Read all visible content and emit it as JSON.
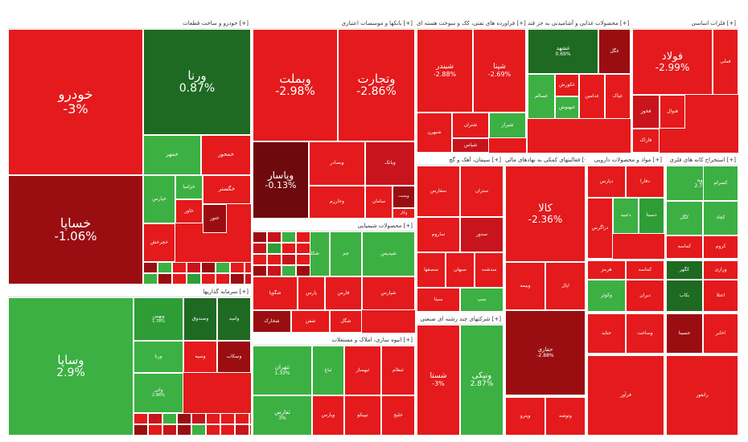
{
  "colors": {
    "red": "#e41a1c",
    "red_mid": "#c8141c",
    "red_dark": "#9a0e12",
    "maroon": "#6e0a0e",
    "green": "#3cb043",
    "green_mid": "#2e9d36",
    "green_dark": "#1e6a22"
  },
  "sectors": [
    {
      "id": "auto",
      "label": "خودرو و ساخت قطعات [+]"
    },
    {
      "id": "banks",
      "label": "بانکها و موسسات اعتباری [+]"
    },
    {
      "id": "metals",
      "label": "فلزات اساسی [+]"
    },
    {
      "id": "investment",
      "label": "سرمایه گذاریها [+]"
    },
    {
      "id": "refinery",
      "label": "فراورده های نفتی، کک و سوخت هسته ای [+]"
    },
    {
      "id": "food",
      "label": "محصولات غذایی و آشامیدنی به جز قند [+]"
    },
    {
      "id": "chemical",
      "label": "محصولات شیمیایی [+]"
    },
    {
      "id": "cement",
      "label": "سیمان، آهک و گچ [+]"
    },
    {
      "id": "multi",
      "label": "شرکتهای چند رشته ای صنعتی [+]"
    },
    {
      "id": "construction",
      "label": "انبوه سازی، املاک و مستغلات [+]"
    },
    {
      "id": "support",
      "label": "فعالیتهای کمکی به نهادهای مالی [+]"
    },
    {
      "id": "pharma",
      "label": "مواد و محصولات دارویی [+]"
    },
    {
      "id": "mining",
      "label": "استخراج کانه های فلزی [+]"
    }
  ],
  "tiles": {
    "khodro": {
      "sym": "خودرو",
      "chg": "-3%"
    },
    "varna": {
      "sym": "ورنا",
      "chg": "0.87%"
    },
    "khsapa": {
      "sym": "خساپا",
      "chg": "-1.06%"
    },
    "vebmellat": {
      "sym": "وبملت",
      "chg": "-2.98%"
    },
    "vtejarat": {
      "sym": "وتجارت",
      "chg": "-2.86%"
    },
    "vpasar": {
      "sym": "وپاسار",
      "chg": "-0.13%"
    },
    "foolad": {
      "sym": "فولاد",
      "chg": "-2.99%"
    },
    "vsapa": {
      "sym": "وساپا",
      "chg": "2.9%"
    },
    "shebandar": {
      "sym": "شبندر",
      "chg": "-2.88%"
    },
    "shepna": {
      "sym": "شپنا",
      "chg": "-2.69%"
    },
    "kala": {
      "sym": "کالا",
      "chg": "-2.36%"
    },
    "vnik": {
      "sym": "ونیکی",
      "chg": "2.87%"
    },
    "shasta": {
      "sym": "شستا",
      "chg": "-3%"
    },
    "khgostar": {
      "sym": "خگستر",
      "chg": ""
    },
    "khmehr": {
      "sym": "خمهر",
      "chg": ""
    },
    "khemehvar": {
      "sym": "خمحور",
      "chg": ""
    },
    "kheper": {
      "sym": "خپارس",
      "chg": ""
    },
    "khzamia": {
      "sym": "خزامیا",
      "chg": ""
    },
    "khavar": {
      "sym": "خاور",
      "chg": ""
    },
    "khchin": {
      "sym": "خچرخش",
      "chg": ""
    },
    "khlent": {
      "sym": "ختور",
      "chg": ""
    },
    "vbsadr": {
      "sym": "وبصادر",
      "chg": ""
    },
    "vbank": {
      "sym": "وبانک",
      "chg": ""
    },
    "vkhar": {
      "sym": "وخارزم",
      "chg": ""
    },
    "vsamen": {
      "sym": "سامان",
      "chg": ""
    },
    "vpost": {
      "sym": "وپست",
      "chg": ""
    },
    "vkar": {
      "sym": "وکار",
      "chg": ""
    },
    "nikhl": {
      "sym": "فملی",
      "chg": ""
    },
    "fkhooz": {
      "sym": "فخوز",
      "chg": ""
    },
    "fmobarak": {
      "sym": "فاراک",
      "chg": ""
    },
    "foolad2": {
      "sym": "فنوال",
      "chg": ""
    },
    "ghadir": {
      "sym": "وغدیر",
      "chg": ""
    },
    "vsan": {
      "sym": "وصنعت",
      "chg": ""
    },
    "vtoos": {
      "sym": "وتوسم",
      "chg": ""
    },
    "vgostar": {
      "sym": "وبوعلی",
      "chg": ""
    },
    "vmehr": {
      "sym": "ومعادن",
      "chg": ""
    },
    "kehrmag": {
      "sym": "ومهان",
      "chg": ""
    },
    "shbehran": {
      "sym": "شبهرن",
      "chg": ""
    },
    "shteran": {
      "sym": "شتران",
      "chg": ""
    },
    "shiraz": {
      "sym": "شیراز",
      "chg": ""
    },
    "shpasa": {
      "sym": "شپاس",
      "chg": ""
    },
    "khoshbir": {
      "sym": "غشهد",
      "chg": "0.69%"
    },
    "ghgol": {
      "sym": "غگل",
      "chg": ""
    },
    "ghsalem": {
      "sym": "غسالم",
      "chg": ""
    },
    "ghkurosh": {
      "sym": "غکورش",
      "chg": ""
    },
    "ghbehs": {
      "sym": "غبهنوش",
      "chg": ""
    },
    "ghdamin": {
      "sym": "غدامین",
      "chg": ""
    },
    "ghgelpa": {
      "sym": "غپاک",
      "chg": ""
    },
    "shekhark": {
      "sym": "شخارک",
      "chg": ""
    },
    "shefan": {
      "sym": "شفن",
      "chg": ""
    },
    "shgol": {
      "sym": "شگل",
      "chg": ""
    },
    "shpars": {
      "sym": "شپارس",
      "chg": ""
    },
    "shkala": {
      "sym": "شکلر",
      "chg": ""
    },
    "shkhazar": {
      "sym": "شکربن",
      "chg": ""
    },
    "jam": {
      "sym": "جم",
      "chg": ""
    },
    "shpdis": {
      "sym": "شپدیس",
      "chg": ""
    },
    "fars": {
      "sym": "فارس",
      "chg": ""
    },
    "pars": {
      "sym": "پارس",
      "chg": ""
    },
    "shgoya": {
      "sym": "شگویا",
      "chg": ""
    },
    "sfars": {
      "sym": "سفارس",
      "chg": ""
    },
    "stran": {
      "sym": "ستران",
      "chg": ""
    },
    "sarub": {
      "sym": "ساروم",
      "chg": ""
    },
    "sdoror": {
      "sym": "سدور",
      "chg": ""
    },
    "sekhazar": {
      "sym": "سخزر",
      "chg": ""
    },
    "sshomal": {
      "sym": "سشمال",
      "chg": ""
    },
    "sfanoos": {
      "sym": "سصفها",
      "chg": ""
    },
    "sbahan": {
      "sym": "سبهان",
      "chg": ""
    },
    "sdasht": {
      "sym": "سدشت",
      "chg": ""
    },
    "ssisi": {
      "sym": "سیتا",
      "chg": ""
    },
    "ssep": {
      "sym": "سپ",
      "chg": ""
    },
    "mehr": {
      "sym": "ثشرق",
      "chg": ""
    },
    "vsakht": {
      "sym": "ثاخت",
      "chg": ""
    },
    "tamlak": {
      "sym": "ثامان",
      "chg": ""
    },
    "tnoor": {
      "sym": "ثنوسا",
      "chg": ""
    },
    "taval": {
      "sym": "ثعمرا",
      "chg": ""
    },
    "thgostar": {
      "sym": "ثپردیس",
      "chg": ""
    },
    "theser": {
      "sym": "ثغرب",
      "chg": ""
    },
    "vrazi": {
      "sym": "وپترو",
      "chg": ""
    },
    "vtaminr": {
      "sym": "وتوشه",
      "chg": ""
    },
    "vsina": {
      "sym": "وسینا",
      "chg": ""
    },
    "vgadir2": {
      "sym": "ونوین",
      "chg": ""
    },
    "dpars": {
      "sym": "دپارس",
      "chg": ""
    },
    "dfara": {
      "sym": "دفارا",
      "chg": ""
    },
    "dzahravi": {
      "sym": "دزاگرس",
      "chg": ""
    },
    "dabidi": {
      "sym": "دعبید",
      "chg": ""
    },
    "dsina": {
      "sym": "دسینا",
      "chg": ""
    },
    "kgol": {
      "sym": "کگل",
      "chg": ""
    },
    "kchad": {
      "sym": "کچاد",
      "chg": ""
    },
    "kemas": {
      "sym": "کماسه",
      "chg": ""
    },
    "kroom": {
      "sym": "کروم",
      "chg": ""
    },
    "kvyan": {
      "sym": "کاوه",
      "chg": "2.77%"
    },
    "ksarab": {
      "sym": "کسرام",
      "chg": ""
    },
    "vtis": {
      "sym": "وبیمه",
      "chg": ""
    },
    "aps": {
      "sym": "اپال",
      "chg": ""
    },
    "hafari": {
      "sym": "حفاری",
      "chg": "-2.88%"
    },
    "khemah": {
      "sym": "ختوقا",
      "chg": ""
    },
    "vkhark": {
      "sym": "تکنو",
      "chg": ""
    },
    "ptay": {
      "sym": "پکرمان",
      "chg": ""
    },
    "rtel": {
      "sym": "رتاپ",
      "chg": ""
    },
    "zfaja": {
      "sym": "زفجر",
      "chg": ""
    },
    "inv1": {
      "sym": "وبهمن",
      "chg": "1.78%"
    },
    "inv2": {
      "sym": "وصندوق",
      "chg": ""
    },
    "inv3": {
      "sym": "وامید",
      "chg": ""
    },
    "inv4": {
      "sym": "ورنا",
      "chg": ""
    },
    "inv5": {
      "sym": "وسپه",
      "chg": ""
    },
    "inv6": {
      "sym": "وسکاب",
      "chg": ""
    },
    "inv7": {
      "sym": "واتی",
      "chg": "2.86%"
    },
    "cs1": {
      "sym": "ثتهران",
      "chg": "1.33%"
    },
    "cs2": {
      "sym": "ثفارس",
      "chg": "3%"
    },
    "cs3": {
      "sym": "ثباغ",
      "chg": ""
    },
    "cs4": {
      "sym": "ثبهساز",
      "chg": ""
    },
    "cs5": {
      "sym": "ثنظام",
      "chg": ""
    },
    "mu1": {
      "sym": "وپارس",
      "chg": ""
    },
    "mu2": {
      "sym": "تیپیکو",
      "chg": ""
    },
    "mu3": {
      "sym": "خلیج",
      "chg": ""
    },
    "mu4": {
      "sym": "وتوکا",
      "chg": ""
    },
    "fe1": {
      "sym": "هرمز",
      "chg": ""
    },
    "fe2": {
      "sym": "کماسه",
      "chg": ""
    },
    "fe3": {
      "sym": "کگهر",
      "chg": ""
    },
    "fe4": {
      "sym": "ورازی",
      "chg": ""
    },
    "fe5": {
      "sym": "وکوثر",
      "chg": ""
    },
    "fe6": {
      "sym": "دیران",
      "chg": ""
    },
    "fe7": {
      "sym": "بکاب",
      "chg": ""
    },
    "fe8": {
      "sym": "اعتلا",
      "chg": ""
    },
    "fe9": {
      "sym": "حتاید",
      "chg": ""
    },
    "fe10": {
      "sym": "وساخت",
      "chg": ""
    },
    "fe11": {
      "sym": "حسینا",
      "chg": ""
    },
    "fe12": {
      "sym": "اخابر",
      "chg": ""
    },
    "fe13": {
      "sym": "فرآور",
      "chg": ""
    },
    "fe14": {
      "sym": "رانفور",
      "chg": ""
    }
  }
}
